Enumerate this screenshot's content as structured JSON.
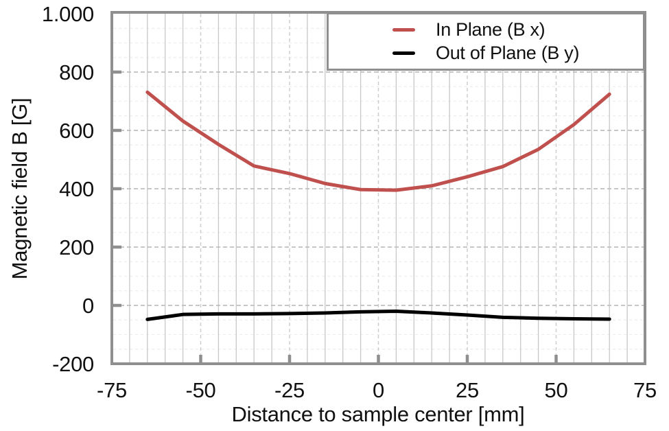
{
  "chart_data": {
    "type": "line",
    "title": "",
    "xlabel": "Distance to sample center [mm]",
    "ylabel": "Magnetic field B [G]",
    "xlim": [
      -75,
      75
    ],
    "ylim": [
      -200,
      1000
    ],
    "x": [
      -65,
      -55,
      -45,
      -35,
      -25,
      -15,
      -5,
      5,
      15,
      25,
      35,
      45,
      55,
      65
    ],
    "series": [
      {
        "name": "In Plane (B x)",
        "color": "#C0504D",
        "values": [
          731,
          632,
          552,
          478,
          452,
          418,
          397,
          395,
          410,
          441,
          476,
          535,
          620,
          724
        ]
      },
      {
        "name": "Out of Plane (B y)",
        "color": "#000000",
        "values": [
          -48,
          -31,
          -29,
          -29,
          -28,
          -26,
          -22,
          -20,
          -26,
          -33,
          -41,
          -44,
          -46,
          -47
        ]
      }
    ],
    "x_ticks": {
      "values": [
        -75,
        -50,
        -25,
        0,
        25,
        50,
        75
      ],
      "labels": [
        "-75",
        "-50",
        "-25",
        "0",
        "25",
        "50",
        "75"
      ]
    },
    "y_ticks": {
      "values": [
        1000,
        800,
        600,
        400,
        200,
        0,
        -200
      ],
      "labels": [
        "1.000",
        "800",
        "600",
        "400",
        "200",
        "0",
        "-200"
      ]
    },
    "grid": {
      "x_minor_step": 5,
      "y_minor_step": 50,
      "grid_on": true
    },
    "legend_position": "top-right"
  }
}
